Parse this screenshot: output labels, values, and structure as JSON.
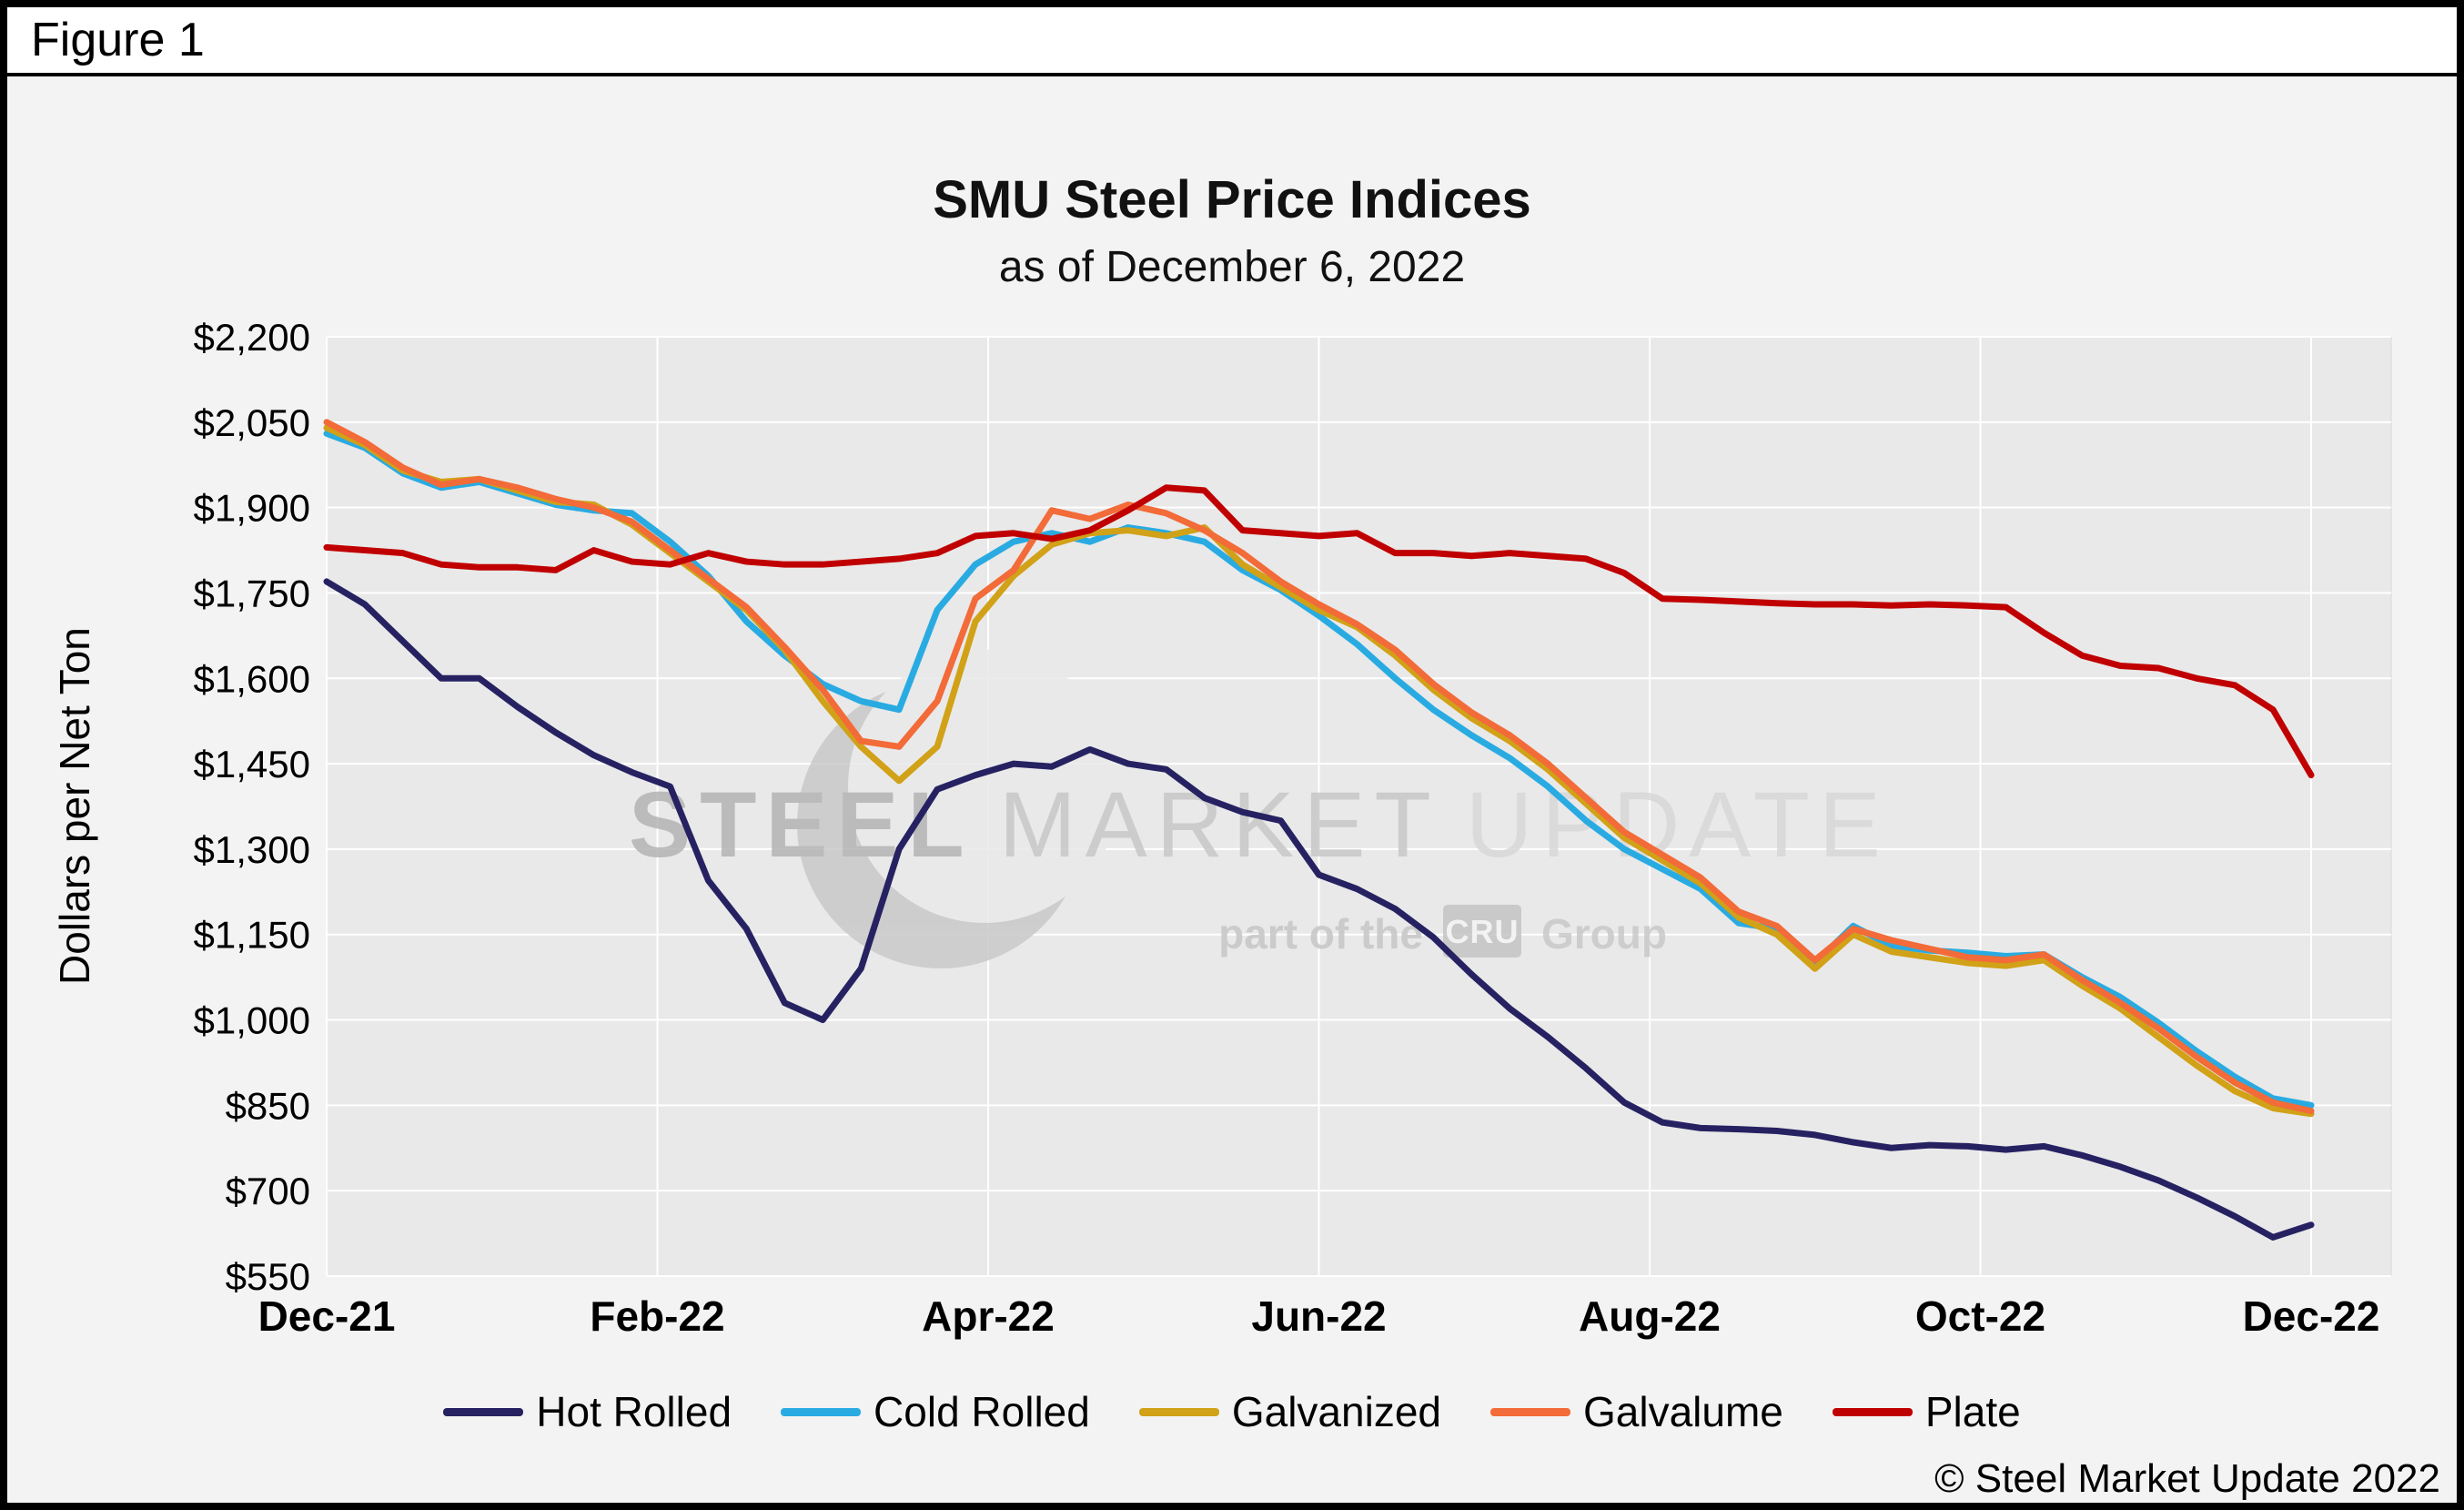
{
  "figure": {
    "label": "Figure 1",
    "copyright": "© Steel Market Update 2022"
  },
  "watermark": {
    "line1_parts": [
      "STEEL",
      "MARKET",
      "UPDATE"
    ],
    "line2_prefix": "part of the",
    "line2_box": "CRU",
    "line2_suffix": "Group"
  },
  "chart_data": {
    "type": "line",
    "title": "SMU Steel Price Indices",
    "subtitle": "as of December 6, 2022",
    "xlabel": "",
    "ylabel": "Dollars per Net Ton",
    "ylim": [
      550,
      2200
    ],
    "ytick_step": 150,
    "ytick_labels": [
      "$550",
      "$700",
      "$850",
      "$1,000",
      "$1,150",
      "$1,300",
      "$1,450",
      "$1,600",
      "$1,750",
      "$1,900",
      "$2,050",
      "$2,200"
    ],
    "x_tick_labels": [
      "Dec-21",
      "Feb-22",
      "Apr-22",
      "Jun-22",
      "Aug-22",
      "Oct-22",
      "Dec-22"
    ],
    "grid": true,
    "legend_position": "bottom",
    "plot_bg": "#E9E9E9",
    "gridline_color": "#FFFFFF",
    "series": [
      {
        "name": "Hot Rolled",
        "color": "#262262",
        "values": [
          1770,
          1730,
          1665,
          1600,
          1600,
          1550,
          1505,
          1465,
          1435,
          1410,
          1245,
          1160,
          1030,
          1000,
          1090,
          1300,
          1405,
          1430,
          1450,
          1445,
          1475,
          1450,
          1440,
          1390,
          1365,
          1350,
          1255,
          1230,
          1195,
          1145,
          1080,
          1020,
          970,
          915,
          855,
          820,
          810,
          808,
          805,
          798,
          785,
          775,
          780,
          778,
          772,
          778,
          762,
          742,
          718,
          688,
          655,
          618,
          640
        ]
      },
      {
        "name": "Cold Rolled",
        "color": "#29ABE2",
        "values": [
          2030,
          2005,
          1960,
          1935,
          1945,
          1925,
          1905,
          1895,
          1890,
          1840,
          1780,
          1700,
          1640,
          1590,
          1560,
          1545,
          1720,
          1800,
          1840,
          1855,
          1840,
          1865,
          1855,
          1840,
          1790,
          1755,
          1710,
          1660,
          1600,
          1545,
          1500,
          1460,
          1410,
          1350,
          1300,
          1265,
          1230,
          1170,
          1160,
          1100,
          1165,
          1130,
          1122,
          1118,
          1112,
          1115,
          1075,
          1040,
          995,
          945,
          900,
          862,
          850
        ]
      },
      {
        "name": "Galvanized",
        "color": "#D1A117",
        "values": [
          2040,
          2010,
          1965,
          1945,
          1950,
          1930,
          1910,
          1905,
          1870,
          1820,
          1770,
          1720,
          1650,
          1560,
          1480,
          1420,
          1480,
          1700,
          1780,
          1835,
          1855,
          1860,
          1850,
          1865,
          1800,
          1760,
          1720,
          1690,
          1640,
          1580,
          1530,
          1490,
          1440,
          1380,
          1320,
          1280,
          1240,
          1180,
          1150,
          1090,
          1150,
          1120,
          1110,
          1100,
          1095,
          1105,
          1060,
          1020,
          970,
          920,
          875,
          845,
          835
        ]
      },
      {
        "name": "Galvalume",
        "color": "#F26B38",
        "values": [
          2050,
          2015,
          1970,
          1940,
          1950,
          1935,
          1915,
          1900,
          1875,
          1825,
          1775,
          1725,
          1655,
          1580,
          1490,
          1480,
          1560,
          1740,
          1790,
          1895,
          1880,
          1905,
          1890,
          1860,
          1820,
          1770,
          1730,
          1695,
          1650,
          1590,
          1540,
          1500,
          1450,
          1390,
          1330,
          1290,
          1250,
          1190,
          1165,
          1105,
          1160,
          1140,
          1125,
          1110,
          1105,
          1115,
          1070,
          1030,
          985,
          935,
          890,
          855,
          840
        ]
      },
      {
        "name": "Plate",
        "color": "#C00000",
        "values": [
          1830,
          1825,
          1820,
          1800,
          1795,
          1795,
          1790,
          1825,
          1805,
          1800,
          1820,
          1805,
          1800,
          1800,
          1805,
          1810,
          1820,
          1850,
          1855,
          1845,
          1860,
          1895,
          1935,
          1930,
          1860,
          1855,
          1850,
          1855,
          1820,
          1820,
          1815,
          1820,
          1815,
          1810,
          1785,
          1740,
          1738,
          1735,
          1732,
          1730,
          1730,
          1728,
          1730,
          1728,
          1725,
          1680,
          1640,
          1622,
          1618,
          1600,
          1588,
          1545,
          1430
        ]
      }
    ]
  }
}
